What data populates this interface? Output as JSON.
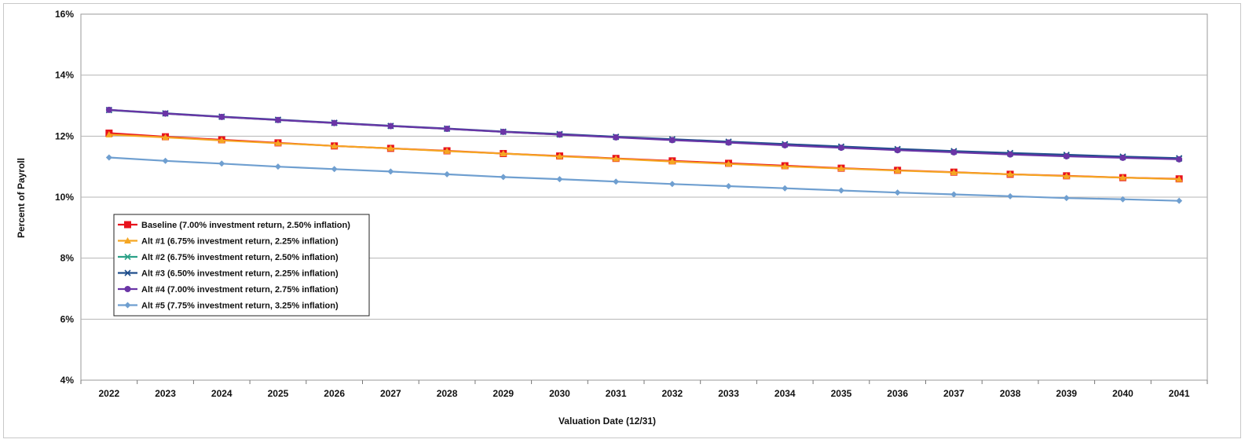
{
  "chart_data": {
    "type": "line",
    "title": "",
    "xlabel": "Valuation Date (12/31)",
    "ylabel": "Percent of Payroll",
    "ylim": [
      4,
      16
    ],
    "yticks": [
      4,
      6,
      8,
      10,
      12,
      14,
      16
    ],
    "ytick_labels": [
      "4%",
      "6%",
      "8%",
      "10%",
      "12%",
      "14%",
      "16%"
    ],
    "categories": [
      "2022",
      "2023",
      "2024",
      "2025",
      "2026",
      "2027",
      "2028",
      "2029",
      "2030",
      "2031",
      "2032",
      "2033",
      "2034",
      "2035",
      "2036",
      "2037",
      "2038",
      "2039",
      "2040",
      "2041"
    ],
    "grid": "horizontal",
    "legend_position": "left, lower-middle",
    "series": [
      {
        "name": "Baseline (7.00% investment return, 2.50% inflation)",
        "color": "#e8131d",
        "marker": "square",
        "values": [
          12.1,
          11.98,
          11.88,
          11.78,
          11.68,
          11.6,
          11.52,
          11.43,
          11.35,
          11.27,
          11.19,
          11.11,
          11.03,
          10.95,
          10.88,
          10.82,
          10.75,
          10.7,
          10.64,
          10.6
        ]
      },
      {
        "name": "Alt #1 (6.75% investment return, 2.25% inflation)",
        "color": "#f5a623",
        "marker": "triangle",
        "values": [
          12.05,
          11.96,
          11.86,
          11.77,
          11.68,
          11.6,
          11.51,
          11.43,
          11.34,
          11.26,
          11.17,
          11.09,
          11.01,
          10.94,
          10.87,
          10.81,
          10.75,
          10.69,
          10.64,
          10.59
        ]
      },
      {
        "name": "Alt #2 (6.75% investment return, 2.50% inflation)",
        "color": "#2aa187",
        "marker": "x",
        "values": [
          12.85,
          12.74,
          12.63,
          12.53,
          12.43,
          12.33,
          12.24,
          12.14,
          12.05,
          11.97,
          11.88,
          11.8,
          11.72,
          11.64,
          11.56,
          11.49,
          11.42,
          11.36,
          11.31,
          11.26
        ]
      },
      {
        "name": "Alt #3 (6.50% investment return, 2.25% inflation)",
        "color": "#1f4e8c",
        "marker": "x",
        "values": [
          12.86,
          12.75,
          12.64,
          12.54,
          12.44,
          12.34,
          12.25,
          12.15,
          12.07,
          11.98,
          11.9,
          11.82,
          11.74,
          11.66,
          11.58,
          11.51,
          11.45,
          11.39,
          11.33,
          11.28
        ]
      },
      {
        "name": "Alt #4 (7.00% investment return, 2.75% inflation)",
        "color": "#6a35a6",
        "marker": "circle",
        "values": [
          12.86,
          12.74,
          12.63,
          12.53,
          12.43,
          12.33,
          12.24,
          12.14,
          12.05,
          11.96,
          11.87,
          11.79,
          11.7,
          11.62,
          11.54,
          11.47,
          11.4,
          11.34,
          11.29,
          11.24
        ]
      },
      {
        "name": "Alt #5 (7.75% investment return, 3.25% inflation)",
        "color": "#6f9fd0",
        "marker": "diamond",
        "values": [
          11.3,
          11.19,
          11.1,
          11.0,
          10.92,
          10.84,
          10.75,
          10.66,
          10.59,
          10.51,
          10.43,
          10.36,
          10.29,
          10.22,
          10.15,
          10.09,
          10.03,
          9.97,
          9.93,
          9.88
        ]
      }
    ]
  }
}
